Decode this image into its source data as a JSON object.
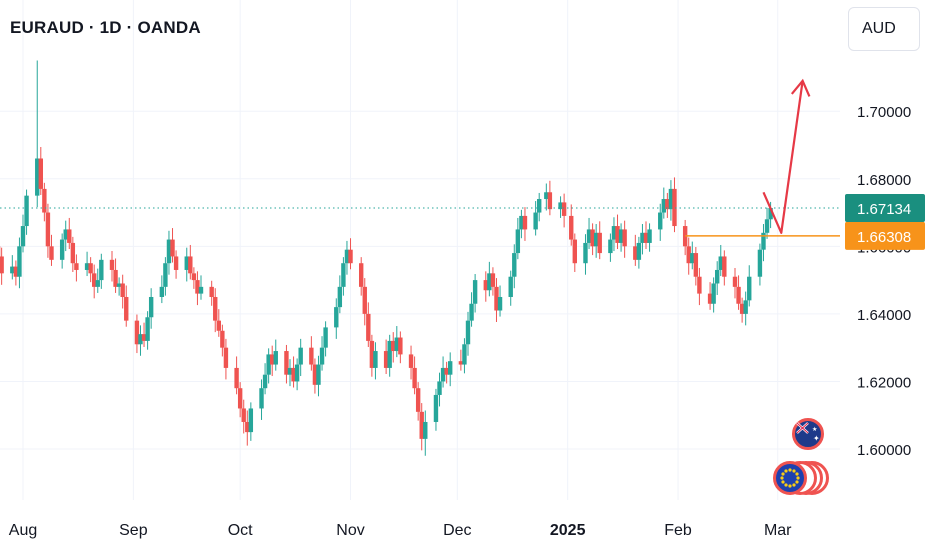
{
  "header": {
    "symbol_title": "EURAUD · 1D · OANDA"
  },
  "price_scale": {
    "currency": "AUD"
  },
  "markers": {
    "last_price": "1.67134",
    "horizontal_level": "1.66308"
  },
  "colors": {
    "up": "#26a69a",
    "down": "#ef5350",
    "last_price_bg": "#1a8f7f",
    "level_bg": "#f7931a",
    "arrow": "#e63946",
    "grid": "#f0f3fa",
    "axis_text": "#131722"
  },
  "icons": [
    "australia-flag-icon",
    "euro-flag-icon"
  ],
  "chart_data": {
    "type": "candlestick",
    "title": "EURAUD · 1D · OANDA",
    "ylim": [
      1.59,
      1.72
    ],
    "y_ticks": [
      "1.60000",
      "1.62000",
      "1.64000",
      "1.66000",
      "1.68000",
      "1.70000"
    ],
    "x_ticks": [
      {
        "label": "Aug",
        "date": "2024-08-01"
      },
      {
        "label": "Sep",
        "date": "2024-09-01"
      },
      {
        "label": "Oct",
        "date": "2024-10-01"
      },
      {
        "label": "Nov",
        "date": "2024-11-01"
      },
      {
        "label": "Dec",
        "date": "2024-12-01"
      },
      {
        "label": "2025",
        "date": "2025-01-01",
        "bold": true
      },
      {
        "label": "Feb",
        "date": "2025-02-01"
      },
      {
        "label": "Mar",
        "date": "2025-03-01"
      }
    ],
    "grid": true,
    "last_price": 1.67134,
    "horizontal_line": {
      "value": 1.66308,
      "from": "2025-02-03"
    },
    "arrow_path": [
      {
        "date": "2025-02-25",
        "value": 1.676
      },
      {
        "date": "2025-03-02",
        "value": 1.664
      },
      {
        "date": "2025-03-08",
        "value": 1.709
      }
    ],
    "closes": [
      [
        "2024-07-25",
        1.657
      ],
      [
        "2024-07-26",
        1.652
      ],
      [
        "2024-07-29",
        1.654
      ],
      [
        "2024-07-30",
        1.651
      ],
      [
        "2024-07-31",
        1.66
      ],
      [
        "2024-08-01",
        1.666
      ],
      [
        "2024-08-02",
        1.675
      ],
      [
        "2024-08-05",
        1.686
      ],
      [
        "2024-08-06",
        1.677
      ],
      [
        "2024-08-07",
        1.67
      ],
      [
        "2024-08-08",
        1.66
      ],
      [
        "2024-08-09",
        1.656
      ],
      [
        "2024-08-12",
        1.662
      ],
      [
        "2024-08-13",
        1.665
      ],
      [
        "2024-08-14",
        1.661
      ],
      [
        "2024-08-15",
        1.655
      ],
      [
        "2024-08-16",
        1.653
      ],
      [
        "2024-08-19",
        1.655
      ],
      [
        "2024-08-20",
        1.652
      ],
      [
        "2024-08-21",
        1.648
      ],
      [
        "2024-08-22",
        1.65
      ],
      [
        "2024-08-23",
        1.656
      ],
      [
        "2024-08-26",
        1.653
      ],
      [
        "2024-08-27",
        1.648
      ],
      [
        "2024-08-28",
        1.649
      ],
      [
        "2024-08-29",
        1.645
      ],
      [
        "2024-08-30",
        1.638
      ],
      [
        "2024-09-02",
        1.631
      ],
      [
        "2024-09-03",
        1.634
      ],
      [
        "2024-09-04",
        1.632
      ],
      [
        "2024-09-05",
        1.639
      ],
      [
        "2024-09-06",
        1.645
      ],
      [
        "2024-09-09",
        1.648
      ],
      [
        "2024-09-10",
        1.655
      ],
      [
        "2024-09-11",
        1.662
      ],
      [
        "2024-09-12",
        1.657
      ],
      [
        "2024-09-13",
        1.653
      ],
      [
        "2024-09-16",
        1.657
      ],
      [
        "2024-09-17",
        1.652
      ],
      [
        "2024-09-18",
        1.65
      ],
      [
        "2024-09-19",
        1.646
      ],
      [
        "2024-09-20",
        1.648
      ],
      [
        "2024-09-23",
        1.645
      ],
      [
        "2024-09-24",
        1.638
      ],
      [
        "2024-09-25",
        1.635
      ],
      [
        "2024-09-26",
        1.63
      ],
      [
        "2024-09-27",
        1.624
      ],
      [
        "2024-09-30",
        1.618
      ],
      [
        "2024-10-01",
        1.612
      ],
      [
        "2024-10-02",
        1.608
      ],
      [
        "2024-10-03",
        1.605
      ],
      [
        "2024-10-04",
        1.612
      ],
      [
        "2024-10-07",
        1.618
      ],
      [
        "2024-10-08",
        1.622
      ],
      [
        "2024-10-09",
        1.628
      ],
      [
        "2024-10-10",
        1.625
      ],
      [
        "2024-10-11",
        1.629
      ],
      [
        "2024-10-14",
        1.622
      ],
      [
        "2024-10-15",
        1.624
      ],
      [
        "2024-10-16",
        1.62
      ],
      [
        "2024-10-17",
        1.625
      ],
      [
        "2024-10-18",
        1.63
      ],
      [
        "2024-10-21",
        1.625
      ],
      [
        "2024-10-22",
        1.619
      ],
      [
        "2024-10-23",
        1.625
      ],
      [
        "2024-10-24",
        1.63
      ],
      [
        "2024-10-25",
        1.636
      ],
      [
        "2024-10-28",
        1.642
      ],
      [
        "2024-10-29",
        1.648
      ],
      [
        "2024-10-30",
        1.655
      ],
      [
        "2024-10-31",
        1.659
      ],
      [
        "2024-11-01",
        1.655
      ],
      [
        "2024-11-04",
        1.648
      ],
      [
        "2024-11-05",
        1.64
      ],
      [
        "2024-11-06",
        1.632
      ],
      [
        "2024-11-07",
        1.624
      ],
      [
        "2024-11-08",
        1.629
      ],
      [
        "2024-11-11",
        1.624
      ],
      [
        "2024-11-12",
        1.632
      ],
      [
        "2024-11-13",
        1.629
      ],
      [
        "2024-11-14",
        1.633
      ],
      [
        "2024-11-15",
        1.628
      ],
      [
        "2024-11-18",
        1.624
      ],
      [
        "2024-11-19",
        1.618
      ],
      [
        "2024-11-20",
        1.611
      ],
      [
        "2024-11-21",
        1.603
      ],
      [
        "2024-11-22",
        1.608
      ],
      [
        "2024-11-25",
        1.616
      ],
      [
        "2024-11-26",
        1.62
      ],
      [
        "2024-11-27",
        1.624
      ],
      [
        "2024-11-28",
        1.622
      ],
      [
        "2024-11-29",
        1.626
      ],
      [
        "2024-12-02",
        1.625
      ],
      [
        "2024-12-03",
        1.631
      ],
      [
        "2024-12-04",
        1.638
      ],
      [
        "2024-12-05",
        1.643
      ],
      [
        "2024-12-06",
        1.65
      ],
      [
        "2024-12-09",
        1.647
      ],
      [
        "2024-12-10",
        1.652
      ],
      [
        "2024-12-11",
        1.648
      ],
      [
        "2024-12-12",
        1.641
      ],
      [
        "2024-12-13",
        1.645
      ],
      [
        "2024-12-16",
        1.651
      ],
      [
        "2024-12-17",
        1.658
      ],
      [
        "2024-12-18",
        1.665
      ],
      [
        "2024-12-19",
        1.669
      ],
      [
        "2024-12-20",
        1.665
      ],
      [
        "2024-12-23",
        1.67
      ],
      [
        "2024-12-24",
        1.674
      ],
      [
        "2024-12-26",
        1.676
      ],
      [
        "2024-12-27",
        1.671
      ],
      [
        "2024-12-30",
        1.673
      ],
      [
        "2024-12-31",
        1.669
      ],
      [
        "2025-01-02",
        1.662
      ],
      [
        "2025-01-03",
        1.655
      ],
      [
        "2025-01-06",
        1.661
      ],
      [
        "2025-01-07",
        1.665
      ],
      [
        "2025-01-08",
        1.66
      ],
      [
        "2025-01-09",
        1.664
      ],
      [
        "2025-01-10",
        1.658
      ],
      [
        "2025-01-13",
        1.662
      ],
      [
        "2025-01-14",
        1.666
      ],
      [
        "2025-01-15",
        1.661
      ],
      [
        "2025-01-16",
        1.665
      ],
      [
        "2025-01-17",
        1.66
      ],
      [
        "2025-01-20",
        1.656
      ],
      [
        "2025-01-21",
        1.661
      ],
      [
        "2025-01-22",
        1.664
      ],
      [
        "2025-01-23",
        1.661
      ],
      [
        "2025-01-24",
        1.665
      ],
      [
        "2025-01-27",
        1.67
      ],
      [
        "2025-01-28",
        1.674
      ],
      [
        "2025-01-29",
        1.671
      ],
      [
        "2025-01-30",
        1.677
      ],
      [
        "2025-01-31",
        1.666
      ],
      [
        "2025-02-03",
        1.66
      ],
      [
        "2025-02-04",
        1.655
      ],
      [
        "2025-02-05",
        1.658
      ],
      [
        "2025-02-06",
        1.651
      ],
      [
        "2025-02-07",
        1.646
      ],
      [
        "2025-02-10",
        1.643
      ],
      [
        "2025-02-11",
        1.649
      ],
      [
        "2025-02-12",
        1.653
      ],
      [
        "2025-02-13",
        1.657
      ],
      [
        "2025-02-14",
        1.651
      ],
      [
        "2025-02-17",
        1.648
      ],
      [
        "2025-02-18",
        1.643
      ],
      [
        "2025-02-19",
        1.64
      ],
      [
        "2025-02-20",
        1.644
      ],
      [
        "2025-02-21",
        1.651
      ],
      [
        "2025-02-24",
        1.659
      ],
      [
        "2025-02-25",
        1.664
      ],
      [
        "2025-02-26",
        1.668
      ],
      [
        "2025-02-27",
        1.67134
      ]
    ]
  }
}
